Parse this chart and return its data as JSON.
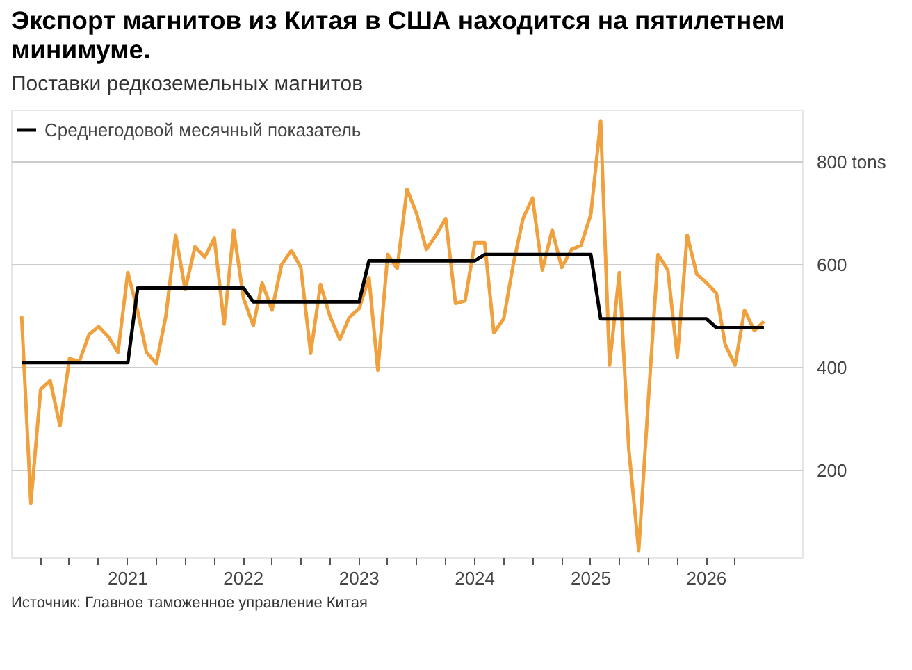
{
  "chart_data": {
    "type": "line",
    "title": "Экспорт магнитов из Китая в США находится на пятилетнем минимуме.",
    "subtitle": "Поставки редкоземельных магнитов",
    "x": [
      "2020-02",
      "2020-03",
      "2020-04",
      "2020-05",
      "2020-06",
      "2020-07",
      "2020-08",
      "2020-09",
      "2020-10",
      "2020-11",
      "2020-12",
      "2021-01",
      "2021-02",
      "2021-03",
      "2021-04",
      "2021-05",
      "2021-06",
      "2021-07",
      "2021-08",
      "2021-09",
      "2021-10",
      "2021-11",
      "2021-12",
      "2022-01",
      "2022-02",
      "2022-03",
      "2022-04",
      "2022-05",
      "2022-06",
      "2022-07",
      "2022-08",
      "2022-09",
      "2022-10",
      "2022-11",
      "2022-12",
      "2023-01",
      "2023-02",
      "2023-03",
      "2023-04",
      "2023-05",
      "2023-06",
      "2023-07",
      "2023-08",
      "2023-09",
      "2023-10",
      "2023-11",
      "2023-12",
      "2024-01",
      "2024-02",
      "2024-03",
      "2024-04",
      "2024-05",
      "2024-06",
      "2024-07",
      "2024-08",
      "2024-09",
      "2024-10",
      "2024-11",
      "2024-12",
      "2025-01",
      "2025-02",
      "2025-03",
      "2025-04",
      "2025-05",
      "2025-06",
      "2025-07",
      "2025-08",
      "2025-09",
      "2025-10",
      "2025-11",
      "2025-12",
      "2026-01",
      "2026-02",
      "2026-03",
      "2026-04",
      "2026-05",
      "2026-06",
      "2026-07"
    ],
    "series": [
      {
        "color": "#f0a03c",
        "values": [
          500,
          137,
          358,
          375,
          287,
          418,
          412,
          465,
          480,
          460,
          430,
          585,
          510,
          430,
          408,
          500,
          658,
          552,
          635,
          615,
          652,
          485,
          668,
          535,
          482,
          565,
          512,
          600,
          628,
          595,
          428,
          562,
          500,
          455,
          498,
          515,
          575,
          395,
          620,
          593,
          747,
          700,
          630,
          658,
          690,
          525,
          530,
          643,
          643,
          468,
          495,
          600,
          690,
          730,
          590,
          668,
          595,
          630,
          638,
          698,
          880,
          405,
          585,
          240,
          45,
          332,
          620,
          590,
          420,
          658,
          582,
          565,
          545,
          445,
          405,
          512,
          472,
          490
        ]
      },
      {
        "name": "Среднегодовой месячный показатель",
        "color": "#000000",
        "values": [
          410,
          410,
          410,
          410,
          410,
          410,
          410,
          410,
          410,
          410,
          410,
          410,
          555,
          555,
          555,
          555,
          555,
          555,
          555,
          555,
          555,
          555,
          555,
          555,
          528,
          528,
          528,
          528,
          528,
          528,
          528,
          528,
          528,
          528,
          528,
          528,
          608,
          608,
          608,
          608,
          608,
          608,
          608,
          608,
          608,
          608,
          608,
          608,
          620,
          620,
          620,
          620,
          620,
          620,
          620,
          620,
          620,
          620,
          620,
          620,
          495,
          495,
          495,
          495,
          495,
          495,
          495,
          495,
          495,
          495,
          495,
          495,
          478,
          478,
          478,
          478,
          478,
          478
        ]
      }
    ],
    "xlim": [
      "2020-01",
      "2026-11"
    ],
    "xticks": [
      {
        "value": "2020-04",
        "label": null
      },
      {
        "value": "2020-07",
        "label": null
      },
      {
        "value": "2020-10",
        "label": null
      },
      {
        "value": "2021-01",
        "label": "2021"
      },
      {
        "value": "2021-04",
        "label": null
      },
      {
        "value": "2021-07",
        "label": null
      },
      {
        "value": "2021-10",
        "label": null
      },
      {
        "value": "2022-01",
        "label": "2022"
      },
      {
        "value": "2022-04",
        "label": null
      },
      {
        "value": "2022-07",
        "label": null
      },
      {
        "value": "2022-10",
        "label": null
      },
      {
        "value": "2023-01",
        "label": "2023"
      },
      {
        "value": "2023-04",
        "label": null
      },
      {
        "value": "2023-07",
        "label": null
      },
      {
        "value": "2023-10",
        "label": null
      },
      {
        "value": "2024-01",
        "label": "2024"
      },
      {
        "value": "2024-04",
        "label": null
      },
      {
        "value": "2024-07",
        "label": null
      },
      {
        "value": "2024-10",
        "label": null
      },
      {
        "value": "2025-01",
        "label": "2025"
      },
      {
        "value": "2025-04",
        "label": null
      },
      {
        "value": "2025-07",
        "label": null
      },
      {
        "value": "2025-10",
        "label": null
      },
      {
        "value": "2026-01",
        "label": "2026"
      },
      {
        "value": "2026-04",
        "label": null
      }
    ],
    "ylim": [
      30,
      900
    ],
    "yticks": [
      200,
      400,
      600,
      {
        "value": 800,
        "label": "800 tons"
      }
    ],
    "grid": "y",
    "legend": "top left",
    "annotations": [
      "Источник: Главное таможенное управление Китая"
    ]
  }
}
